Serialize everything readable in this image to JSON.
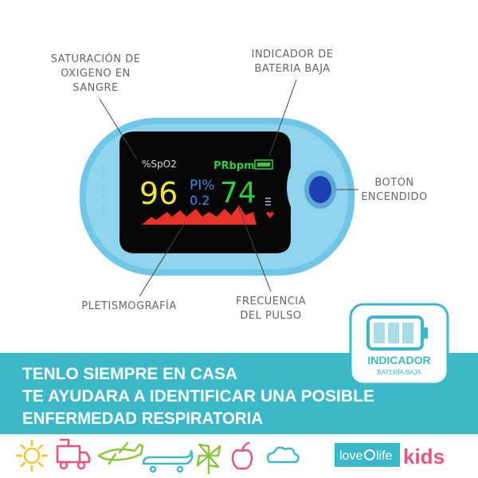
{
  "labels": {
    "saturation": [
      "SATURACIÓN DE",
      "OXIGENO EN",
      "SANGRE"
    ],
    "battery": [
      "INDICADOR DE",
      "BATERIA BAJA"
    ],
    "button": [
      "BOTÓN",
      "ENCENDIDO"
    ],
    "pleth": "PLETISMOGRAFÍA",
    "pulse": [
      "FRECUENCIA",
      "DEL PULSO"
    ]
  },
  "screen": {
    "spo2_label": "%SpO2",
    "pr_label": "PRbpm",
    "spo2": "96",
    "pi_label": "PI%",
    "pi": "0.2",
    "pr": "74"
  },
  "badge": {
    "title": "INDICADOR",
    "subtitle": "BATERÍA BAJA"
  },
  "banner": [
    "TENLO SIEMPRE EN CASA",
    "TE AYUDARA A IDENTIFICAR UNA POSIBLE",
    "ENFERMEDAD RESPIRATORIA"
  ],
  "logo": {
    "left": "love",
    "right": "life",
    "brand": "kids"
  }
}
